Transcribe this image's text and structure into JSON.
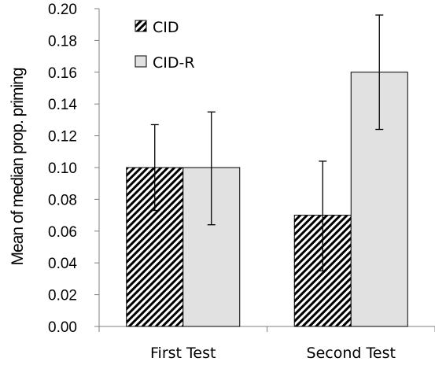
{
  "chart_data": {
    "type": "bar",
    "title": "",
    "xlabel": "",
    "ylabel": "Mean of median prop. priming",
    "ylim": [
      0,
      0.2
    ],
    "yticks": [
      "0.00",
      "0.02",
      "0.04",
      "0.06",
      "0.08",
      "0.10",
      "0.12",
      "0.14",
      "0.16",
      "0.18",
      "0.20"
    ],
    "categories": [
      "First Test",
      "Second Test"
    ],
    "legend_position": "top-left",
    "grid": false,
    "series": [
      {
        "name": "CID",
        "pattern": "diagonal-hatch",
        "color": "#000000",
        "values": [
          0.1,
          0.07
        ],
        "error_low": [
          0.073,
          0.035
        ],
        "error_high": [
          0.127,
          0.104
        ]
      },
      {
        "name": "CID-R",
        "pattern": "solid",
        "color": "#e1e1e1",
        "values": [
          0.1,
          0.16
        ],
        "error_low": [
          0.064,
          0.124
        ],
        "error_high": [
          0.135,
          0.196
        ]
      }
    ]
  }
}
